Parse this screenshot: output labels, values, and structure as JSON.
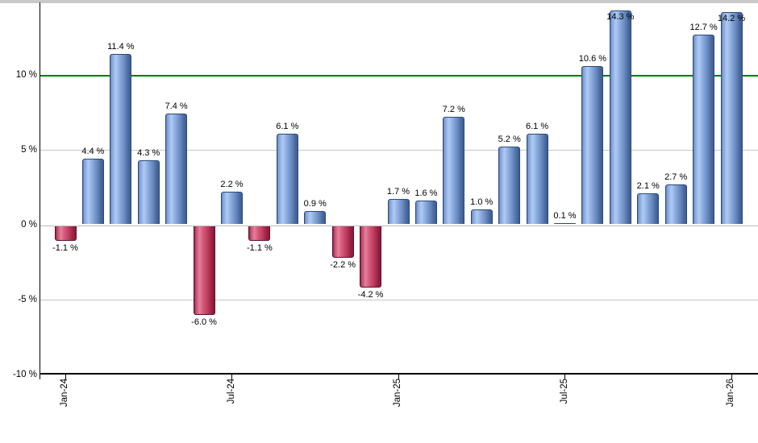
{
  "chart_data": {
    "type": "bar",
    "title": "",
    "xlabel": "",
    "ylabel": "",
    "grid": "horizontal",
    "legend": "none",
    "ylim": [
      -10,
      14.6
    ],
    "bar_colors": {
      "positive": "#7e9fd2",
      "positive_border": "#2a4a78",
      "negative": "#c84a6c",
      "negative_border": "#5f0f2b"
    },
    "grid_color": "#c6c6c6",
    "axis_color": "#000000",
    "reference_line": {
      "value": 10,
      "label": "",
      "color": "#007a00"
    },
    "y_ticks": [
      {
        "label": "10 %",
        "value": 10
      },
      {
        "label": "5 %",
        "value": 5
      },
      {
        "label": "0 %",
        "value": 0
      },
      {
        "label": "-5 %",
        "value": -5
      },
      {
        "label": "-10 %",
        "value": -10
      }
    ],
    "x_ticks": [
      {
        "label": "Jan-24",
        "index": 0
      },
      {
        "label": "Jul-24",
        "index": 6
      },
      {
        "label": "Jan-25",
        "index": 12
      },
      {
        "label": "Jul-25",
        "index": 18
      },
      {
        "label": "Jan-26",
        "index": 24
      }
    ],
    "bars": [
      {
        "value": -1.1,
        "label": "-1.1 %"
      },
      {
        "value": 4.4,
        "label": "4.4 %"
      },
      {
        "value": 11.4,
        "label": "11.4 %"
      },
      {
        "value": 4.3,
        "label": "4.3 %"
      },
      {
        "value": 7.4,
        "label": "7.4 %"
      },
      {
        "value": -6.0,
        "label": "-6.0 %"
      },
      {
        "value": 2.2,
        "label": "2.2 %"
      },
      {
        "value": -1.1,
        "label": "-1.1 %"
      },
      {
        "value": 6.1,
        "label": "6.1 %"
      },
      {
        "value": 0.9,
        "label": "0.9 %"
      },
      {
        "value": -2.2,
        "label": "-2.2 %"
      },
      {
        "value": -4.2,
        "label": "-4.2 %"
      },
      {
        "value": 1.7,
        "label": "1.7 %"
      },
      {
        "value": 1.6,
        "label": "1.6 %"
      },
      {
        "value": 7.2,
        "label": "7.2 %"
      },
      {
        "value": 1.0,
        "label": "1.0 %"
      },
      {
        "value": 5.2,
        "label": "5.2 %"
      },
      {
        "value": 6.1,
        "label": "6.1 %"
      },
      {
        "value": 0.1,
        "label": "0.1 %"
      },
      {
        "value": 10.6,
        "label": "10.6 %"
      },
      {
        "value": 14.3,
        "label": "14.3 %"
      },
      {
        "value": 2.1,
        "label": "2.1 %"
      },
      {
        "value": 2.7,
        "label": "2.7 %"
      },
      {
        "value": 12.7,
        "label": "12.7 %"
      },
      {
        "value": 14.2,
        "label": "14.2 %"
      }
    ]
  }
}
